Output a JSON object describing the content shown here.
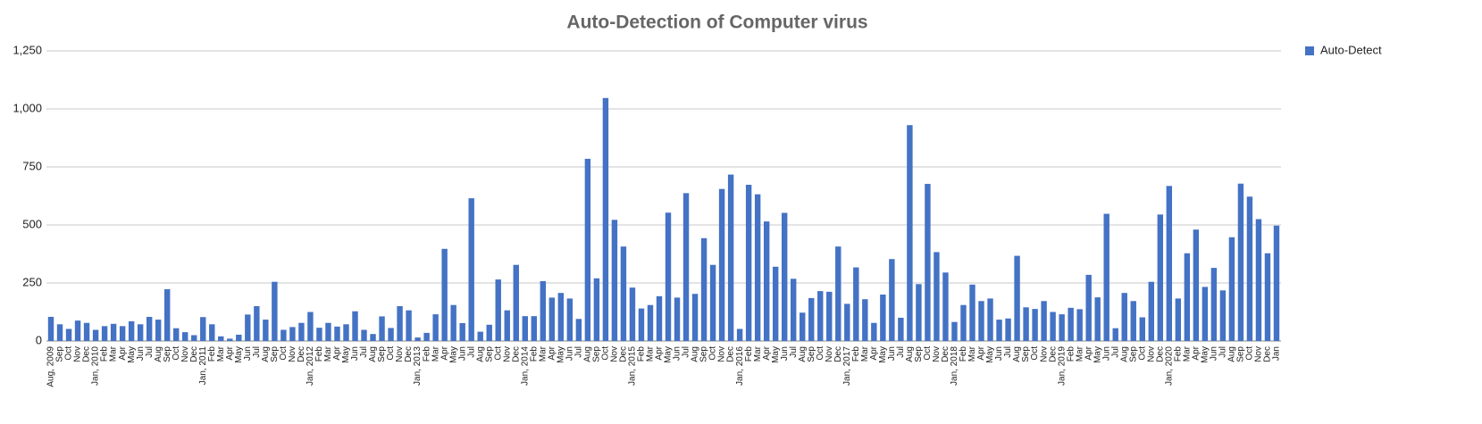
{
  "chart_data": {
    "type": "bar",
    "title": "Auto-Detection of Computer virus",
    "categories": [
      "Aug, 2009",
      "Sep",
      "Oct",
      "Nov",
      "Dec",
      "Jan, 2010",
      "Feb",
      "Mar",
      "Apr",
      "May",
      "Jun",
      "Jul",
      "Aug",
      "Sep",
      "Oct",
      "Nov",
      "Dec",
      "Jan, 2011",
      "Feb",
      "Mar",
      "Apr",
      "May",
      "Jun",
      "Jul",
      "Aug",
      "Sep",
      "Oct",
      "Nov",
      "Dec",
      "Jan, 2012",
      "Feb",
      "Mar",
      "Apr",
      "May",
      "Jun",
      "Jul",
      "Aug",
      "Sep",
      "Oct",
      "Nov",
      "Dec",
      "Jan, 2013",
      "Feb",
      "Mar",
      "Apr",
      "May",
      "Jun",
      "Jul",
      "Aug",
      "Sep",
      "Oct",
      "Nov",
      "Dec",
      "Jan, 2014",
      "Feb",
      "Mar",
      "Apr",
      "May",
      "Jun",
      "Jul",
      "Aug",
      "Sep",
      "Oct",
      "Nov",
      "Dec",
      "Jan, 2015",
      "Feb",
      "Mar",
      "Apr",
      "May",
      "Jun",
      "Jul",
      "Aug",
      "Sep",
      "Oct",
      "Nov",
      "Dec",
      "Jan, 2016",
      "Feb",
      "Mar",
      "Apr",
      "May",
      "Jun",
      "Jul",
      "Aug",
      "Sep",
      "Oct",
      "Nov",
      "Dec",
      "Jan, 2017",
      "Feb",
      "Mar",
      "Apr",
      "May",
      "Jun",
      "Jul",
      "Aug",
      "Sep",
      "Oct",
      "Nov",
      "Dec",
      "Jan, 2018",
      "Feb",
      "Mar",
      "Apr",
      "May",
      "Jun",
      "Jul",
      "Aug",
      "Sep",
      "Oct",
      "Nov",
      "Dec",
      "Jan, 2019",
      "Feb",
      "Mar",
      "Apr",
      "May",
      "Jun",
      "Jul",
      "Aug",
      "Sep",
      "Oct",
      "Nov",
      "Dec",
      "Jan, 2020",
      "Feb",
      "Mar",
      "Apr",
      "May",
      "Jun",
      "Jul",
      "Aug",
      "Sep",
      "Oct",
      "Nov",
      "Dec",
      "Jan"
    ],
    "series": [
      {
        "name": "Auto-Detect",
        "color": "#4472c4",
        "values": [
          104,
          72,
          52,
          88,
          78,
          48,
          64,
          74,
          64,
          85,
          72,
          104,
          92,
          223,
          55,
          38,
          25,
          103,
          72,
          20,
          10,
          27,
          114,
          150,
          92,
          255,
          48,
          60,
          78,
          125,
          57,
          78,
          62,
          72,
          128,
          48,
          30,
          106,
          56,
          150,
          132,
          15,
          35,
          115,
          397,
          155,
          77,
          615,
          40,
          70,
          265,
          132,
          328,
          107,
          107,
          258,
          187,
          207,
          183,
          95,
          785,
          270,
          1047,
          522,
          407,
          230,
          140,
          155,
          193,
          553,
          187,
          637,
          203,
          443,
          328,
          655,
          717,
          52,
          673,
          632,
          515,
          320,
          552,
          268,
          122,
          185,
          215,
          212,
          407,
          160,
          317,
          180,
          78,
          200,
          353,
          100,
          930,
          245,
          677,
          383,
          295,
          82,
          155,
          243,
          172,
          183,
          92,
          97,
          367,
          145,
          138,
          172,
          125,
          115,
          143,
          137,
          285,
          188,
          548,
          55,
          207,
          172,
          102,
          255,
          545,
          668,
          183,
          378,
          480,
          233,
          315,
          218,
          447,
          678,
          622,
          525,
          378,
          497
        ]
      }
    ],
    "ylim": [
      0,
      1250
    ],
    "yticks": [
      0,
      250,
      500,
      750,
      {
        "value": 1000,
        "label": "1,000"
      },
      {
        "value": 1250,
        "label": "1,250"
      }
    ],
    "grid": true,
    "legend": "top-right"
  }
}
